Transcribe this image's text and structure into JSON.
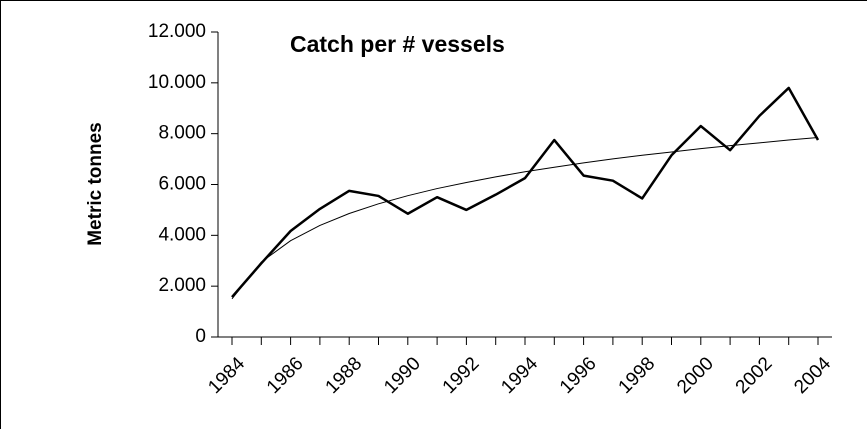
{
  "chart_data": {
    "type": "line",
    "title": "Catch per  # vessels",
    "y_label": "Metric tonnes",
    "categories": [
      "1984",
      null,
      "1986",
      null,
      "1988",
      null,
      "1990",
      null,
      "1992",
      null,
      "1994",
      null,
      "1996",
      null,
      "1998",
      null,
      "2000",
      null,
      "2002",
      null,
      "2004"
    ],
    "series": [
      {
        "color": "#000000",
        "values": [
          1570,
          2900,
          4170,
          5040,
          5750,
          5550,
          4850,
          5500,
          5000,
          5600,
          6250,
          7750,
          6350,
          6150,
          5450,
          7150,
          8300,
          7350,
          8700,
          9800,
          7750
        ]
      },
      {
        "color": "#000000",
        "values": [
          1500,
          2950,
          3790,
          4390,
          4860,
          5240,
          5560,
          5840,
          6080,
          6300,
          6500,
          6680,
          6850,
          7010,
          7150,
          7280,
          7410,
          7530,
          7640,
          7750,
          7850
        ]
      }
    ],
    "ylim": [
      0,
      12000
    ],
    "yticks": [
      0,
      {
        "value": 2000,
        "label": "2.000"
      },
      {
        "value": 4000,
        "label": "4.000"
      },
      {
        "value": 6000,
        "label": "6.000"
      },
      {
        "value": 8000,
        "label": "8.000"
      },
      {
        "value": 10000,
        "label": "10.000"
      },
      {
        "value": 12000,
        "label": "12.000"
      }
    ],
    "grid": false
  }
}
